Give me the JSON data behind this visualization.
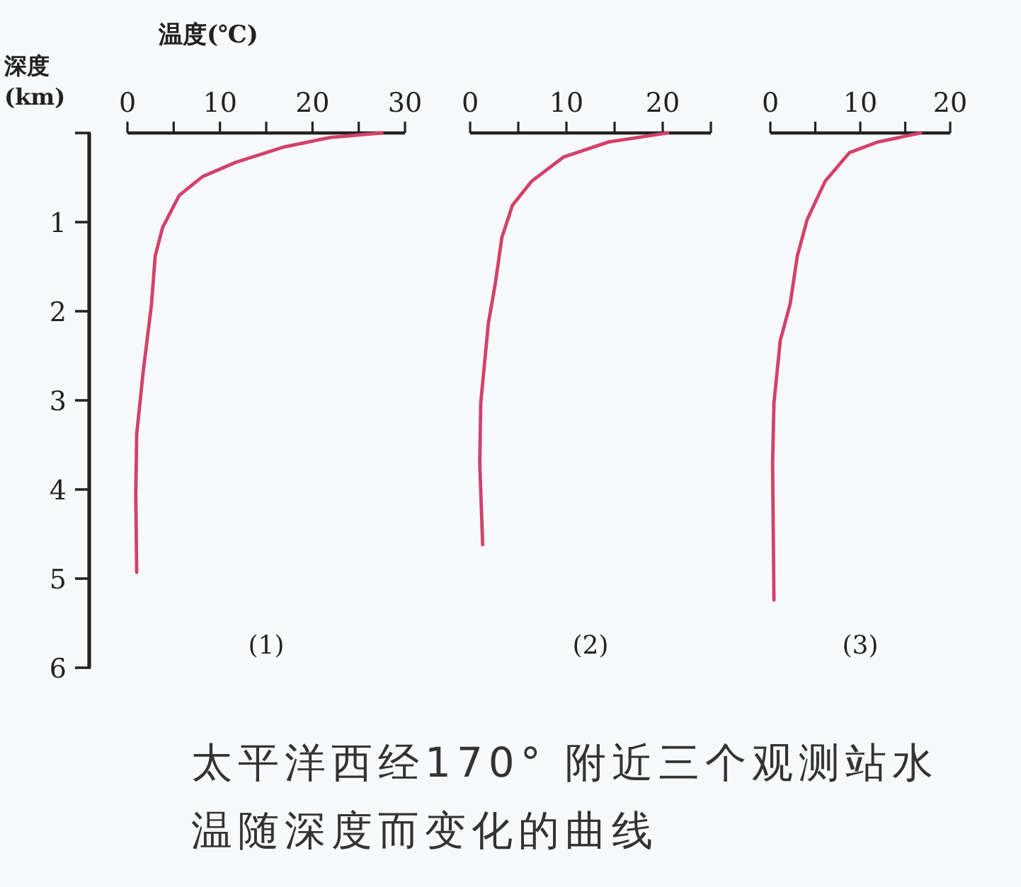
{
  "chart_data": [
    {
      "type": "line",
      "title": "(1)",
      "xlabel": "温度(℃)",
      "ylabel": "深度(km)",
      "color": "#d3416b",
      "x": [
        27.5,
        21.9,
        16.8,
        11.7,
        8.1,
        5.6,
        3.8,
        3.0,
        2.6,
        1.7,
        1.0,
        0.9,
        1.0
      ],
      "values": [
        0,
        0.05,
        0.16,
        0.33,
        0.49,
        0.7,
        1.06,
        1.38,
        1.92,
        2.68,
        3.38,
        4.06,
        4.93
      ],
      "xlim": [
        0,
        30
      ],
      "xticks": [
        0,
        {
          "value": 5,
          "label": null
        },
        10,
        {
          "value": 15,
          "label": null
        },
        20,
        {
          "value": 25,
          "label": null
        },
        30
      ],
      "ylim": [
        6,
        0
      ],
      "yticks": [
        {
          "value": 0,
          "label": null
        },
        1,
        2,
        3,
        4,
        5,
        6
      ],
      "annotations": [
        "太平洋西经170° 附近三个观测站水温随深度而变化的曲线"
      ]
    },
    {
      "type": "line",
      "title": "(2)",
      "color": "#d3416b",
      "x": [
        20.5,
        14.4,
        9.7,
        6.4,
        4.4,
        3.3,
        2.6,
        1.9,
        1.1,
        1.0,
        1.3
      ],
      "values": [
        0,
        0.1,
        0.27,
        0.54,
        0.81,
        1.17,
        1.7,
        2.13,
        3.03,
        3.71,
        4.62
      ],
      "xlim": [
        0,
        25
      ],
      "xticks": [
        0,
        {
          "value": 5,
          "label": null
        },
        10,
        {
          "value": 15,
          "label": null
        },
        20,
        {
          "value": 25,
          "label": null
        }
      ],
      "ylim": [
        6,
        0
      ],
      "tick_labels": "x"
    },
    {
      "type": "line",
      "title": "(3)",
      "color": "#d3416b",
      "x": [
        16.7,
        12.0,
        8.8,
        6.1,
        4.1,
        3.0,
        2.2,
        1.1,
        0.4,
        0.25,
        0.4
      ],
      "values": [
        0,
        0.1,
        0.22,
        0.54,
        0.97,
        1.38,
        1.92,
        2.33,
        3.03,
        3.71,
        5.24
      ],
      "xlim": [
        0,
        20
      ],
      "xticks": [
        0,
        {
          "value": 5,
          "label": null
        },
        10,
        {
          "value": 15,
          "label": null
        },
        20
      ],
      "ylim": [
        6,
        0
      ],
      "tick_labels": "x"
    }
  ]
}
